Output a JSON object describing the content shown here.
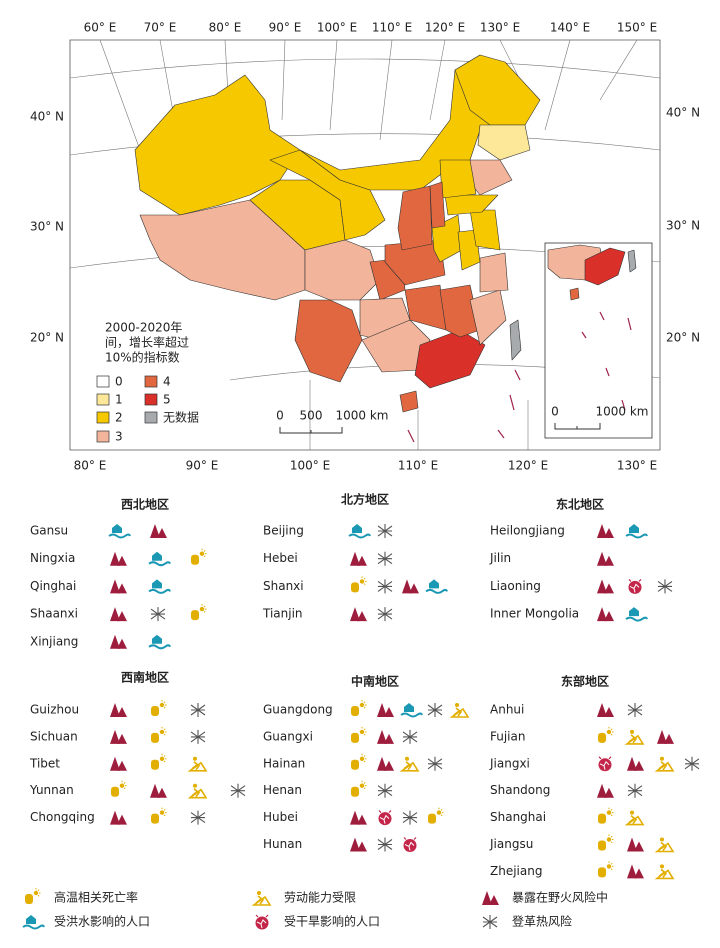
{
  "map": {
    "graticule": {
      "top": [
        "60° E",
        "70° E",
        "80° E",
        "90° E",
        "100° E",
        "110° E",
        "120° E",
        "130° E",
        "140° E",
        "150° E"
      ],
      "bottom": [
        "80° E",
        "90° E",
        "100° E",
        "110° E",
        "120° E",
        "130° E"
      ],
      "left": [
        "40° N",
        "30° N",
        "20° N"
      ],
      "right": [
        "40° N",
        "30° N",
        "20° N"
      ]
    },
    "legend": {
      "title": [
        "2000-2020年",
        "间，增长率超过",
        "10%的指标数"
      ],
      "items": [
        {
          "label": "0",
          "color": "#ffffff"
        },
        {
          "label": "1",
          "color": "#fde89a"
        },
        {
          "label": "2",
          "color": "#f6c800"
        },
        {
          "label": "3",
          "color": "#f2b49a"
        },
        {
          "label": "4",
          "color": "#e0673f"
        },
        {
          "label": "5",
          "color": "#d9302a"
        },
        {
          "label": "无数据",
          "color": "#a7abad"
        }
      ]
    },
    "scale_bar": [
      "0",
      "500",
      "1000 km"
    ],
    "inset_scale_bar": [
      "0",
      "1000 km"
    ]
  },
  "icon_legend": [
    {
      "label": "高温相关死亡率",
      "color": "#e2ae00"
    },
    {
      "label": "劳动能力受限",
      "color": "#e2ae00"
    },
    {
      "label": "暴露在野火风险中",
      "color": "#9e1d3d"
    },
    {
      "label": "受洪水影响的人口",
      "color": "#1b98b4"
    },
    {
      "label": "受干旱影响的人口",
      "color": "#c4264a"
    },
    {
      "label": "登革热风险",
      "color": "#555555"
    }
  ],
  "panels": [
    {
      "title": "西北地区",
      "rows": [
        {
          "province": "Gansu",
          "icons": [
            3,
            2
          ]
        },
        {
          "province": "Ningxia",
          "icons": [
            2,
            3,
            0
          ]
        },
        {
          "province": "Qinghai",
          "icons": [
            2,
            3
          ]
        },
        {
          "province": "Shaanxi",
          "icons": [
            2,
            5,
            0
          ]
        },
        {
          "province": "Xinjiang",
          "icons": [
            2,
            3
          ]
        }
      ]
    },
    {
      "title": "北方地区",
      "rows": [
        {
          "province": "Beijing",
          "icons": [
            3,
            5
          ]
        },
        {
          "province": "Hebei",
          "icons": [
            2,
            5
          ]
        },
        {
          "province": "Shanxi",
          "icons": [
            0,
            5,
            2,
            3
          ]
        },
        {
          "province": "Tianjin",
          "icons": [
            2,
            5
          ]
        }
      ]
    },
    {
      "title": "东北地区",
      "rows": [
        {
          "province": "Heilongjiang",
          "icons": [
            2,
            3
          ]
        },
        {
          "province": "Jilin",
          "icons": [
            2
          ]
        },
        {
          "province": "Liaoning",
          "icons": [
            2,
            4,
            5
          ]
        },
        {
          "province": "Inner Mongolia",
          "icons": [
            2,
            3
          ]
        }
      ]
    },
    {
      "title": "西南地区",
      "rows": [
        {
          "province": "Guizhou",
          "icons": [
            2,
            0,
            5
          ]
        },
        {
          "province": "Sichuan",
          "icons": [
            2,
            0,
            5
          ]
        },
        {
          "province": "Tibet",
          "icons": [
            2,
            0,
            1
          ]
        },
        {
          "province": "Yunnan",
          "icons": [
            0,
            2,
            1,
            5
          ]
        },
        {
          "province": "Chongqing",
          "icons": [
            2,
            0,
            5
          ]
        }
      ]
    },
    {
      "title": "中南地区",
      "rows": [
        {
          "province": "Guangdong",
          "icons": [
            0,
            2,
            3,
            5,
            1
          ]
        },
        {
          "province": "Guangxi",
          "icons": [
            0,
            2,
            5
          ]
        },
        {
          "province": "Hainan",
          "icons": [
            0,
            2,
            1,
            5
          ]
        },
        {
          "province": "Henan",
          "icons": [
            0,
            5
          ]
        },
        {
          "province": "Hubei",
          "icons": [
            2,
            4,
            5,
            0
          ]
        },
        {
          "province": "Hunan",
          "icons": [
            2,
            5,
            4
          ]
        }
      ]
    },
    {
      "title": "东部地区",
      "rows": [
        {
          "province": "Anhui",
          "icons": [
            2,
            5
          ]
        },
        {
          "province": "Fujian",
          "icons": [
            0,
            1,
            2
          ]
        },
        {
          "province": "Jiangxi",
          "icons": [
            4,
            2,
            1,
            5
          ]
        },
        {
          "province": "Shandong",
          "icons": [
            2,
            5
          ]
        },
        {
          "province": "Shanghai",
          "icons": [
            0,
            1
          ]
        },
        {
          "province": "Jiangsu",
          "icons": [
            0,
            2,
            1
          ]
        },
        {
          "province": "Zhejiang",
          "icons": [
            0,
            2,
            1
          ]
        }
      ]
    }
  ]
}
